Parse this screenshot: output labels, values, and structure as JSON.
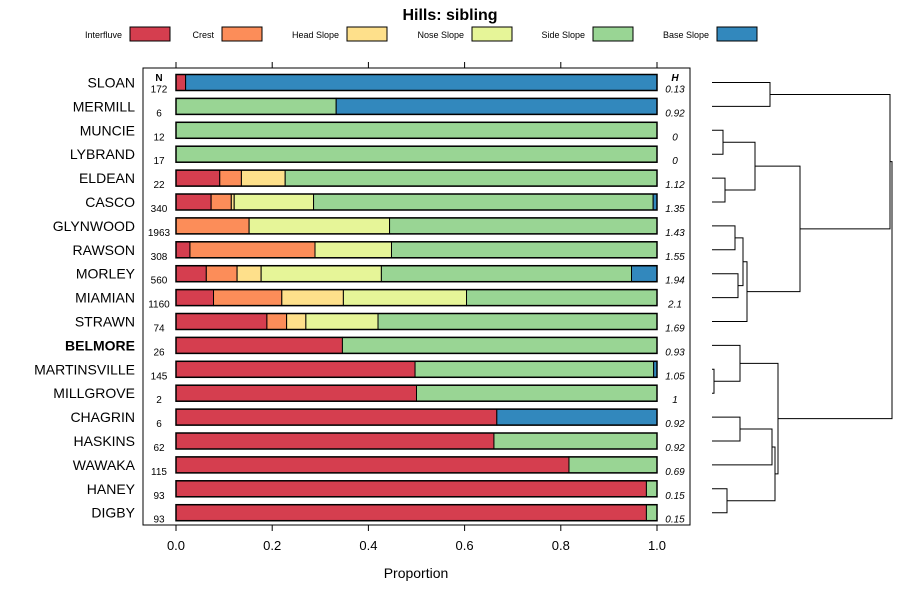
{
  "chart_data": {
    "type": "bar",
    "orientation": "horizontal-stacked",
    "title": "Hills: sibling",
    "xlabel": "Proportion",
    "xlim": [
      0,
      1
    ],
    "xticks": [
      "0.0",
      "0.2",
      "0.4",
      "0.6",
      "0.8",
      "1.0"
    ],
    "n_header": "N",
    "h_header": "H",
    "legend_position": "top",
    "series": [
      {
        "name": "Interfluve",
        "color": "#d53e4f"
      },
      {
        "name": "Crest",
        "color": "#fc8d59"
      },
      {
        "name": "Head Slope",
        "color": "#fee08b"
      },
      {
        "name": "Nose Slope",
        "color": "#e6f598"
      },
      {
        "name": "Side Slope",
        "color": "#99d594"
      },
      {
        "name": "Base Slope",
        "color": "#3288bd"
      }
    ],
    "rows": [
      {
        "label": "SLOAN",
        "n": "172",
        "h": "0.13",
        "bold": false,
        "values": [
          0.02,
          0,
          0,
          0,
          0,
          0.98
        ]
      },
      {
        "label": "MERMILL",
        "n": "6",
        "h": "0.92",
        "bold": false,
        "values": [
          0,
          0,
          0,
          0,
          0.333,
          0.667
        ]
      },
      {
        "label": "MUNCIE",
        "n": "12",
        "h": "0",
        "bold": false,
        "values": [
          0,
          0,
          0,
          0,
          1,
          0
        ]
      },
      {
        "label": "LYBRAND",
        "n": "17",
        "h": "0",
        "bold": false,
        "values": [
          0,
          0,
          0,
          0,
          1,
          0
        ]
      },
      {
        "label": "ELDEAN",
        "n": "22",
        "h": "1.12",
        "bold": false,
        "values": [
          0.091,
          0.045,
          0.091,
          0,
          0.773,
          0
        ]
      },
      {
        "label": "CASCO",
        "n": "340",
        "h": "1.35",
        "bold": false,
        "values": [
          0.073,
          0.042,
          0.006,
          0.165,
          0.706,
          0.008
        ]
      },
      {
        "label": "GLYNWOOD",
        "n": "1963",
        "h": "1.43",
        "bold": false,
        "values": [
          0,
          0.152,
          0,
          0.292,
          0.556,
          0
        ]
      },
      {
        "label": "RAWSON",
        "n": "308",
        "h": "1.55",
        "bold": false,
        "values": [
          0.029,
          0.26,
          0,
          0.159,
          0.552,
          0
        ]
      },
      {
        "label": "MORLEY",
        "n": "560",
        "h": "1.94",
        "bold": false,
        "values": [
          0.063,
          0.064,
          0.05,
          0.25,
          0.52,
          0.053
        ]
      },
      {
        "label": "MIAMIAN",
        "n": "1160",
        "h": "2.1",
        "bold": false,
        "values": [
          0.078,
          0.142,
          0.128,
          0.256,
          0.396,
          0
        ]
      },
      {
        "label": "STRAWN",
        "n": "74",
        "h": "1.69",
        "bold": false,
        "values": [
          0.189,
          0.041,
          0.04,
          0.15,
          0.58,
          0
        ]
      },
      {
        "label": "BELMORE",
        "n": "26",
        "h": "0.93",
        "bold": true,
        "values": [
          0.346,
          0,
          0,
          0,
          0.654,
          0
        ]
      },
      {
        "label": "MARTINSVILLE",
        "n": "145",
        "h": "1.05",
        "bold": false,
        "values": [
          0.497,
          0,
          0,
          0,
          0.496,
          0.007
        ]
      },
      {
        "label": "MILLGROVE",
        "n": "2",
        "h": "1",
        "bold": false,
        "values": [
          0.5,
          0,
          0,
          0,
          0.5,
          0
        ]
      },
      {
        "label": "CHAGRIN",
        "n": "6",
        "h": "0.92",
        "bold": false,
        "values": [
          0.667,
          0,
          0,
          0,
          0,
          0.333
        ]
      },
      {
        "label": "HASKINS",
        "n": "62",
        "h": "0.92",
        "bold": false,
        "values": [
          0.661,
          0,
          0,
          0,
          0.339,
          0
        ]
      },
      {
        "label": "WAWAKA",
        "n": "115",
        "h": "0.69",
        "bold": false,
        "values": [
          0.817,
          0,
          0,
          0,
          0.183,
          0
        ]
      },
      {
        "label": "HANEY",
        "n": "93",
        "h": "0.15",
        "bold": false,
        "values": [
          0.978,
          0,
          0,
          0,
          0.022,
          0
        ]
      },
      {
        "label": "DIGBY",
        "n": "93",
        "h": "0.15",
        "bold": false,
        "values": [
          0.978,
          0,
          0,
          0,
          0.022,
          0
        ]
      }
    ]
  }
}
